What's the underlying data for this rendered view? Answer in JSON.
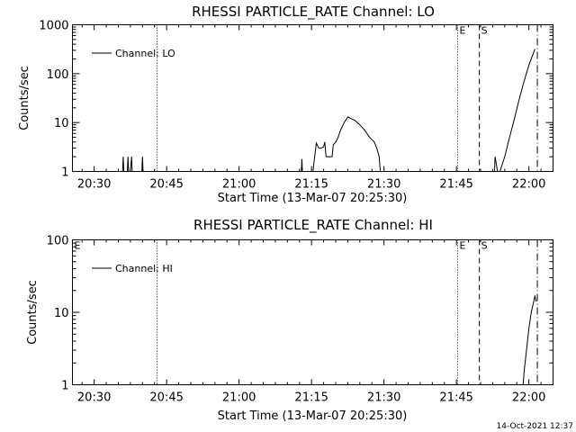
{
  "timestamp": "14-Oct-2021 12:37",
  "chart_data": [
    {
      "type": "line",
      "title": "RHESSI PARTICLE_RATE Channel: LO",
      "xlabel": "Start Time (13-Mar-07 20:25:30)",
      "ylabel": "Counts/sec",
      "yscale": "log",
      "ylim": [
        1,
        1000
      ],
      "xlim": [
        "20:25:30",
        "22:05:00"
      ],
      "x_ticks": [
        "20:30",
        "20:45",
        "21:00",
        "21:15",
        "21:30",
        "21:45",
        "22:00"
      ],
      "y_ticks": [
        "1",
        "10",
        "100",
        "1000"
      ],
      "legend": {
        "label": "Channel: LO",
        "position": "top-left"
      },
      "markers": [
        {
          "label": "",
          "time": "20:43:00",
          "style": "dotted"
        },
        {
          "label": "E",
          "time": "21:45:15",
          "style": "dotted"
        },
        {
          "label": "S",
          "time": "21:49:45",
          "style": "dashed"
        },
        {
          "label": "",
          "time": "22:01:45",
          "style": "dashdot"
        }
      ],
      "series": [
        {
          "name": "Channel: LO",
          "points": [
            [
              "20:35:45",
              0.5
            ],
            [
              "20:36:00",
              2
            ],
            [
              "20:36:15",
              0.5
            ],
            [
              "20:36:45",
              0.5
            ],
            [
              "20:37:00",
              2
            ],
            [
              "20:37:15",
              0.5
            ],
            [
              "20:37:45",
              2
            ],
            [
              "20:38:00",
              0.5
            ],
            [
              "20:39:45",
              0.5
            ],
            [
              "20:40:00",
              2
            ],
            [
              "20:40:15",
              0.5
            ],
            [
              "21:12:45",
              0.5
            ],
            [
              "21:13:00",
              1.8
            ],
            [
              "21:13:15",
              0.5
            ],
            [
              "21:15:00",
              0.5
            ],
            [
              "21:15:30",
              1.5
            ],
            [
              "21:16:00",
              3.8
            ],
            [
              "21:16:30",
              3
            ],
            [
              "21:17:00",
              3
            ],
            [
              "21:17:30",
              3.2
            ],
            [
              "21:17:45",
              4
            ],
            [
              "21:18:00",
              2
            ],
            [
              "21:19:15",
              2
            ],
            [
              "21:19:30",
              3.5
            ],
            [
              "21:20:00",
              4
            ],
            [
              "21:20:30",
              5
            ],
            [
              "21:21:00",
              7
            ],
            [
              "21:21:45",
              10
            ],
            [
              "21:22:30",
              13
            ],
            [
              "21:23:15",
              12
            ],
            [
              "21:24:00",
              11
            ],
            [
              "21:25:00",
              9
            ],
            [
              "21:26:00",
              7
            ],
            [
              "21:27:00",
              5
            ],
            [
              "21:28:00",
              4
            ],
            [
              "21:28:30",
              3
            ],
            [
              "21:29:00",
              2
            ],
            [
              "21:29:15",
              1
            ],
            [
              "21:29:30",
              0.5
            ],
            [
              "21:52:45",
              0.5
            ],
            [
              "21:53:00",
              2
            ],
            [
              "21:53:30",
              1
            ],
            [
              "21:54:00",
              1
            ],
            [
              "21:55:00",
              2
            ],
            [
              "21:56:00",
              5
            ],
            [
              "21:57:00",
              12
            ],
            [
              "21:58:00",
              30
            ],
            [
              "21:59:00",
              70
            ],
            [
              "22:00:00",
              150
            ],
            [
              "22:01:15",
              320
            ]
          ]
        }
      ]
    },
    {
      "type": "line",
      "title": "RHESSI PARTICLE_RATE Channel: HI",
      "xlabel": "Start Time (13-Mar-07 20:25:30)",
      "ylabel": "Counts/sec",
      "yscale": "log",
      "ylim": [
        1,
        100
      ],
      "xlim": [
        "20:25:30",
        "22:05:00"
      ],
      "x_ticks": [
        "20:30",
        "20:45",
        "21:00",
        "21:15",
        "21:30",
        "21:45",
        "22:00"
      ],
      "y_ticks": [
        "1",
        "10",
        "100"
      ],
      "legend": {
        "label": "Channel: HI",
        "position": "top-left"
      },
      "markers": [
        {
          "label": "E",
          "time": "20:25:30",
          "style": "none"
        },
        {
          "label": "",
          "time": "20:43:00",
          "style": "dotted"
        },
        {
          "label": "E",
          "time": "21:45:15",
          "style": "dotted"
        },
        {
          "label": "S",
          "time": "21:49:45",
          "style": "dashed"
        },
        {
          "label": "",
          "time": "22:01:45",
          "style": "dashdot"
        }
      ],
      "series": [
        {
          "name": "Channel: HI",
          "points": [
            [
              "21:58:30",
              0.5
            ],
            [
              "21:59:00",
              1.5
            ],
            [
              "21:59:30",
              3
            ],
            [
              "22:00:00",
              6
            ],
            [
              "22:00:30",
              10
            ],
            [
              "22:01:00",
              14
            ],
            [
              "22:01:15",
              17
            ],
            [
              "22:01:30",
              14
            ]
          ]
        }
      ]
    }
  ]
}
